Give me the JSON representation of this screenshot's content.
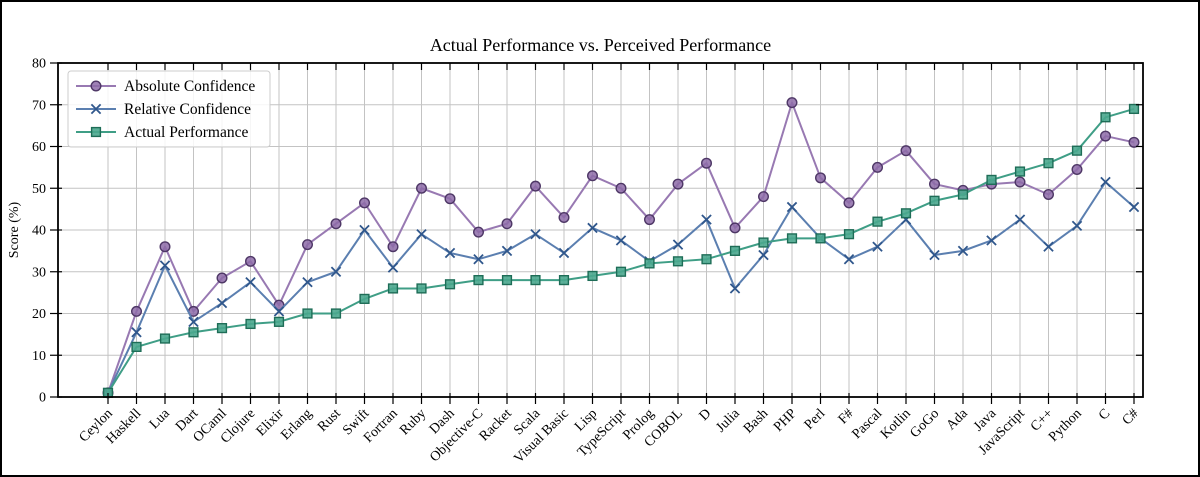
{
  "figure": {
    "background": "#ffffff",
    "border_color": "#000000"
  },
  "chart_data": {
    "type": "line",
    "title": "Actual Performance vs. Perceived Performance",
    "xlabel": "",
    "ylabel": "Score (%)",
    "ylim": [
      0,
      80
    ],
    "yticks": [
      0,
      10,
      20,
      30,
      40,
      50,
      60,
      70,
      80
    ],
    "grid": true,
    "grid_color": "#c3c3c3",
    "frame_color": "#000000",
    "legend_position": "upper-left",
    "categories": [
      "Ceylon",
      "Haskell",
      "Lua",
      "Dart",
      "OCaml",
      "Clojure",
      "Elixir",
      "Erlang",
      "Rust",
      "Swift",
      "Fortran",
      "Ruby",
      "Dash",
      "Objective-C",
      "Racket",
      "Scala",
      "Visual Basic",
      "Lisp",
      "TypeScript",
      "Prolog",
      "COBOL",
      "D",
      "Julia",
      "Bash",
      "PHP",
      "Perl",
      "F#",
      "Pascal",
      "Kotlin",
      "GoGo",
      "Ada",
      "Java",
      "JavaScript",
      "C++",
      "Python",
      "C",
      "C#"
    ],
    "series": [
      {
        "name": "Absolute Confidence",
        "marker": "circle",
        "line_color": "#9879b2",
        "marker_fill": "#8d6ba8",
        "marker_edge": "#4e3766",
        "values": [
          1,
          20.5,
          36,
          20.5,
          28.5,
          32.5,
          22,
          36.5,
          41.5,
          46.5,
          36,
          50,
          47.5,
          39.5,
          41.5,
          50.5,
          43,
          53,
          50,
          42.5,
          51,
          56,
          40.5,
          48,
          70.5,
          52.5,
          46.5,
          55,
          59,
          51,
          49.5,
          51,
          51.5,
          48.5,
          54.5,
          62.5,
          61
        ]
      },
      {
        "name": "Relative Confidence",
        "marker": "x",
        "line_color": "#5b7fb0",
        "marker_fill": "none",
        "marker_edge": "#30578c",
        "values": [
          1,
          15.5,
          31.5,
          18,
          22.5,
          27.5,
          20.5,
          27.5,
          30,
          40,
          31,
          39,
          34.5,
          33,
          35,
          39,
          34.5,
          40.5,
          37.5,
          32.5,
          36.5,
          42.5,
          26,
          34,
          45.5,
          38,
          33,
          36,
          42.5,
          34,
          35,
          37.5,
          42.5,
          36,
          41,
          51.5,
          45.5
        ]
      },
      {
        "name": "Actual Performance",
        "marker": "square",
        "line_color": "#3f9e86",
        "marker_fill": "#4aa78e",
        "marker_edge": "#1e6d57",
        "values": [
          1,
          12,
          14,
          15.5,
          16.5,
          17.5,
          18,
          20,
          20,
          23.5,
          26,
          26,
          27,
          28,
          28,
          28,
          28,
          29,
          30,
          32,
          32.5,
          33,
          35,
          37,
          38,
          38,
          39,
          42,
          44,
          47,
          48.5,
          52,
          54,
          56,
          59,
          67,
          69
        ]
      }
    ]
  }
}
